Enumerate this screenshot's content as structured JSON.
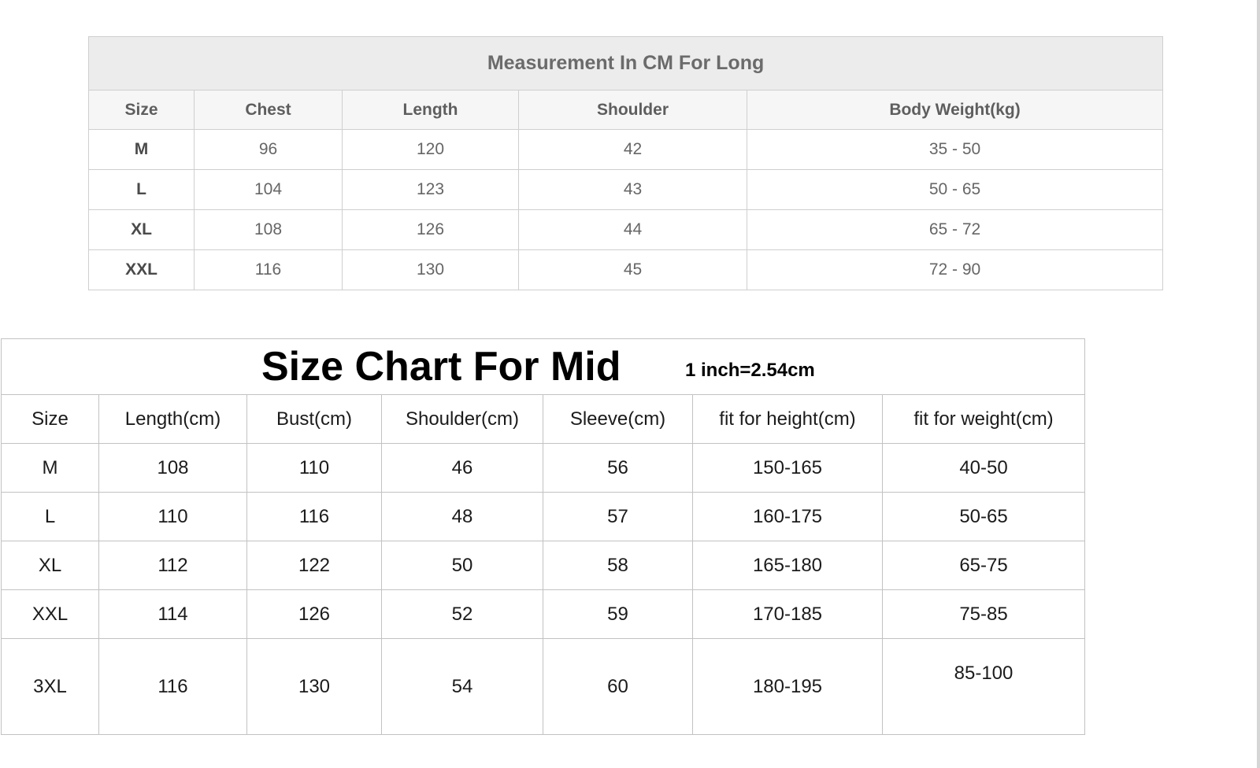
{
  "long_table": {
    "title": "Measurement In CM For Long",
    "headers": [
      "Size",
      "Chest",
      "Length",
      "Shoulder",
      "Body Weight(kg)"
    ],
    "rows": [
      [
        "M",
        "96",
        "120",
        "42",
        "35 - 50"
      ],
      [
        "L",
        "104",
        "123",
        "43",
        "50 - 65"
      ],
      [
        "XL",
        "108",
        "126",
        "44",
        "65 - 72"
      ],
      [
        "XXL",
        "116",
        "130",
        "45",
        "72 - 90"
      ]
    ]
  },
  "mid_table": {
    "title": "Size Chart For Mid",
    "note": "1 inch=2.54cm",
    "headers": [
      "Size",
      "Length(cm)",
      "Bust(cm)",
      "Shoulder(cm)",
      "Sleeve(cm)",
      "fit for height(cm)",
      "fit for weight(cm)"
    ],
    "rows": [
      [
        "M",
        "108",
        "110",
        "46",
        "56",
        "150-165",
        "40-50"
      ],
      [
        "L",
        "110",
        "116",
        "48",
        "57",
        "160-175",
        "50-65"
      ],
      [
        "XL",
        "112",
        "122",
        "50",
        "58",
        "165-180",
        "65-75"
      ],
      [
        "XXL",
        "114",
        "126",
        "52",
        "59",
        "170-185",
        "75-85"
      ],
      [
        "3XL",
        "116",
        "130",
        "54",
        "60",
        "180-195",
        "85-100"
      ]
    ]
  }
}
